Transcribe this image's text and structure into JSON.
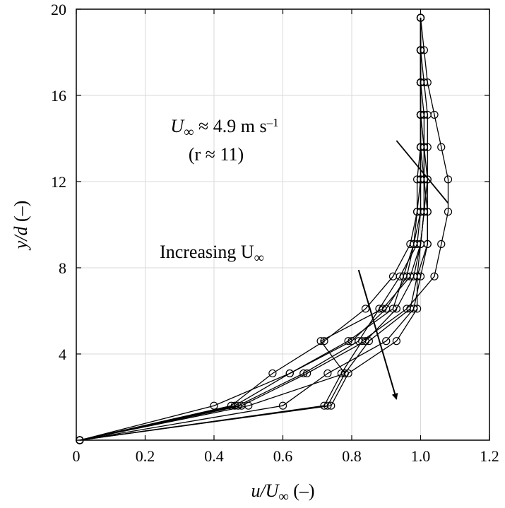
{
  "chart_data": {
    "type": "line",
    "title": "",
    "xlabel": {
      "main": "u/U",
      "sub": "∞",
      "tail": " (–)"
    },
    "ylabel": {
      "main": "y/d",
      "tail": " (–)"
    },
    "xlim": [
      0,
      1.2
    ],
    "ylim": [
      0,
      20
    ],
    "xticks": [
      0,
      0.2,
      0.4,
      0.6,
      0.8,
      1.0,
      1.2
    ],
    "xtick_labels": [
      "0",
      "0.2",
      "0.4",
      "0.6",
      "0.8",
      "1.0",
      "1.2"
    ],
    "yticks": [
      4,
      8,
      12,
      16,
      20
    ],
    "ytick_labels": [
      "4",
      "8",
      "12",
      "16",
      "20"
    ],
    "grid": true,
    "y": [
      0,
      1.6,
      3.1,
      4.6,
      6.1,
      7.6,
      9.1,
      10.6,
      12.1,
      13.6,
      15.1,
      16.6,
      18.1,
      19.6
    ],
    "series": [
      {
        "x": [
          0.01,
          0.4,
          0.62,
          0.79,
          0.92,
          0.95,
          0.98,
          0.99,
          0.99,
          1.0,
          1.0,
          1.0,
          1.0,
          1.0
        ]
      },
      {
        "x": [
          0.01,
          0.45,
          0.57,
          0.72,
          0.84,
          0.92,
          0.97,
          0.99,
          1.0,
          1.0,
          1.0,
          1.0,
          1.0,
          1.0
        ]
      },
      {
        "x": [
          0.01,
          0.46,
          0.62,
          0.8,
          0.9,
          0.96,
          0.98,
          1.0,
          1.0,
          1.0,
          1.0,
          1.0,
          1.0,
          1.0
        ]
      },
      {
        "x": [
          0.01,
          0.47,
          0.66,
          0.82,
          0.88,
          0.94,
          0.99,
          1.0,
          1.0,
          1.0,
          1.0,
          1.0,
          1.0,
          1.0
        ]
      },
      {
        "x": [
          0.01,
          0.48,
          0.67,
          0.84,
          0.93,
          0.98,
          1.0,
          1.01,
          1.01,
          1.0,
          1.0,
          1.0,
          1.0,
          1.0
        ]
      },
      {
        "x": [
          0.01,
          0.5,
          0.78,
          0.85,
          0.97,
          0.99,
          1.0,
          1.01,
          1.01,
          1.01,
          1.0,
          1.0,
          1.0,
          1.0
        ]
      },
      {
        "x": [
          0.01,
          0.6,
          0.73,
          0.9,
          0.98,
          1.0,
          1.02,
          1.02,
          1.02,
          1.01,
          1.0,
          1.0,
          1.0,
          1.0
        ]
      },
      {
        "x": [
          0.01,
          0.72,
          0.77,
          0.83,
          0.96,
          1.04,
          1.06,
          1.08,
          1.08,
          1.06,
          1.04,
          1.02,
          1.01,
          1.0
        ]
      },
      {
        "x": [
          0.01,
          0.74,
          0.79,
          0.93,
          0.99,
          0.99,
          1.02,
          1.02,
          1.01,
          1.01,
          1.01,
          1.0,
          1.0,
          1.0
        ]
      },
      {
        "x": [
          0.01,
          0.73,
          0.78,
          0.71,
          0.89,
          0.97,
          1.0,
          1.01,
          1.02,
          1.02,
          1.02,
          1.01,
          1.0,
          1.0
        ]
      }
    ],
    "annotations": [
      {
        "id": "u-inf-49",
        "line1_main": "U",
        "line1_sub": "∞",
        "line1_tail": " ≈ 4.9 m s",
        "line1_sup": "–1",
        "line2": "(r ≈ 11)",
        "from": [
          0.93,
          13.9
        ],
        "to": [
          1.08,
          11.0
        ]
      },
      {
        "id": "increasing",
        "text_main": "Increasing U",
        "text_sub": "∞",
        "from": [
          0.82,
          7.9
        ],
        "to": [
          0.93,
          1.9
        ]
      }
    ]
  }
}
